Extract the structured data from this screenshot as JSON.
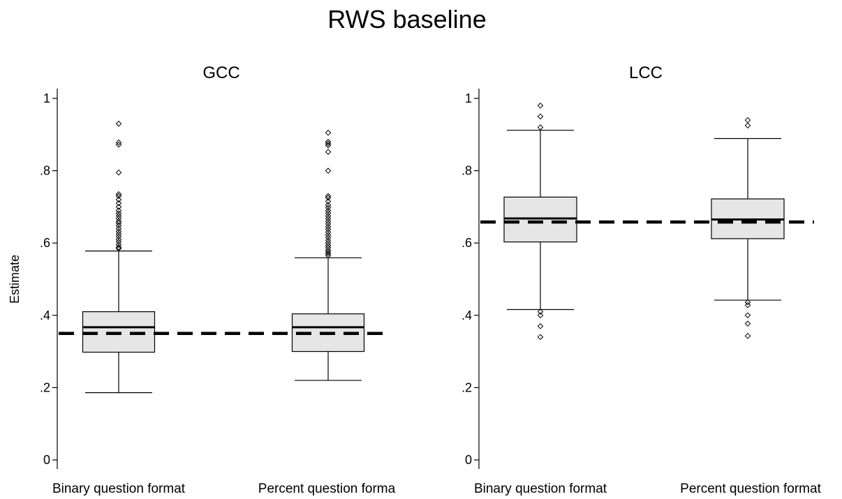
{
  "title": "RWS baseline",
  "ylabel": "Estimate",
  "y_ticks": [
    {
      "value": 0,
      "label": "0"
    },
    {
      "value": 0.2,
      "label": ".2"
    },
    {
      "value": 0.4,
      "label": ".4"
    },
    {
      "value": 0.6,
      "label": ".6"
    },
    {
      "value": 0.8,
      "label": ".8"
    },
    {
      "value": 1,
      "label": "1"
    }
  ],
  "chart_data": [
    {
      "type": "boxplot",
      "title": "GCC",
      "ylabel": "Estimate",
      "ylim": [
        0,
        1
      ],
      "reference_line": {
        "value": 0.35,
        "style": "dashed"
      },
      "categories": [
        {
          "label": "Binary question format",
          "whisker_low": 0.186,
          "q1": 0.298,
          "median": 0.367,
          "q3": 0.41,
          "whisker_high": 0.578,
          "outliers": [
            0.585,
            0.588,
            0.595,
            0.603,
            0.61,
            0.618,
            0.625,
            0.632,
            0.64,
            0.648,
            0.655,
            0.66,
            0.668,
            0.675,
            0.682,
            0.69,
            0.7,
            0.71,
            0.72,
            0.73,
            0.735,
            0.795,
            0.872,
            0.878,
            0.93
          ]
        },
        {
          "label": "Percent question forma",
          "whisker_low": 0.22,
          "q1": 0.3,
          "median": 0.367,
          "q3": 0.404,
          "whisker_high": 0.559,
          "outliers": [
            0.565,
            0.57,
            0.575,
            0.58,
            0.587,
            0.593,
            0.6,
            0.607,
            0.615,
            0.622,
            0.63,
            0.638,
            0.645,
            0.653,
            0.66,
            0.668,
            0.675,
            0.683,
            0.69,
            0.698,
            0.705,
            0.715,
            0.725,
            0.73,
            0.8,
            0.852,
            0.87,
            0.875,
            0.88,
            0.905
          ]
        }
      ]
    },
    {
      "type": "boxplot",
      "title": "LCC",
      "ylim": [
        0,
        1
      ],
      "reference_line": {
        "value": 0.658,
        "style": "dashed"
      },
      "categories": [
        {
          "label": "Binary question format",
          "whisker_low": 0.416,
          "q1": 0.603,
          "median": 0.668,
          "q3": 0.727,
          "whisker_high": 0.912,
          "outliers": [
            0.34,
            0.37,
            0.4,
            0.41,
            0.92,
            0.95,
            0.98
          ]
        },
        {
          "label": "Percent question format",
          "whisker_low": 0.442,
          "q1": 0.612,
          "median": 0.665,
          "q3": 0.722,
          "whisker_high": 0.889,
          "outliers": [
            0.343,
            0.377,
            0.4,
            0.428,
            0.436,
            0.925,
            0.94
          ]
        }
      ]
    }
  ]
}
